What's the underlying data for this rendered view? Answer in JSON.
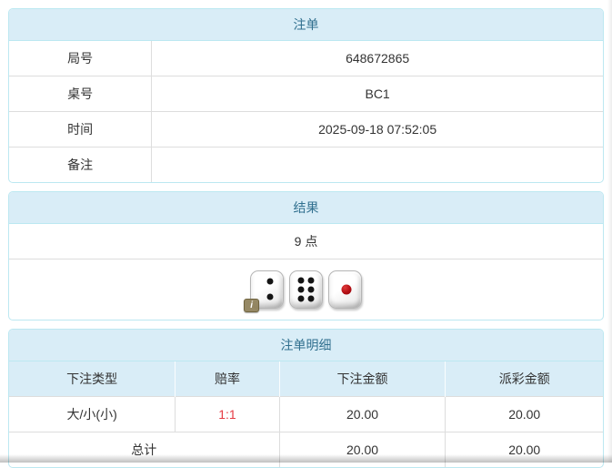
{
  "colors": {
    "panel_border": "#bce8f1",
    "heading_background": "#d9edf7",
    "heading_text": "#31708f",
    "row_divider": "#dddddd",
    "body_text": "#333333",
    "odds_text": "#e53b43",
    "die_pip_black": "#151515",
    "die_pip_red": "#b30e14",
    "info_badge_background": "#8d7f58"
  },
  "bet_info": {
    "title": "注单",
    "rows": [
      {
        "label": "局号",
        "value": "648672865"
      },
      {
        "label": "桌号",
        "value": "BC1"
      },
      {
        "label": "时间",
        "value": "2025-09-18 07:52:05"
      },
      {
        "label": "备注",
        "value": ""
      }
    ]
  },
  "result": {
    "title": "结果",
    "points": "9 点",
    "dice": [
      2,
      6,
      1
    ],
    "info_badge": "i"
  },
  "details": {
    "title": "注单明细",
    "columns": [
      "下注类型",
      "赔率",
      "下注金额",
      "派彩金额"
    ],
    "rows": [
      {
        "bet_type": "大/小(小)",
        "odds": "1:1",
        "bet_amount": "20.00",
        "payout_amount": "20.00"
      }
    ],
    "total": {
      "label": "总计",
      "bet_amount": "20.00",
      "payout_amount": "20.00"
    }
  }
}
